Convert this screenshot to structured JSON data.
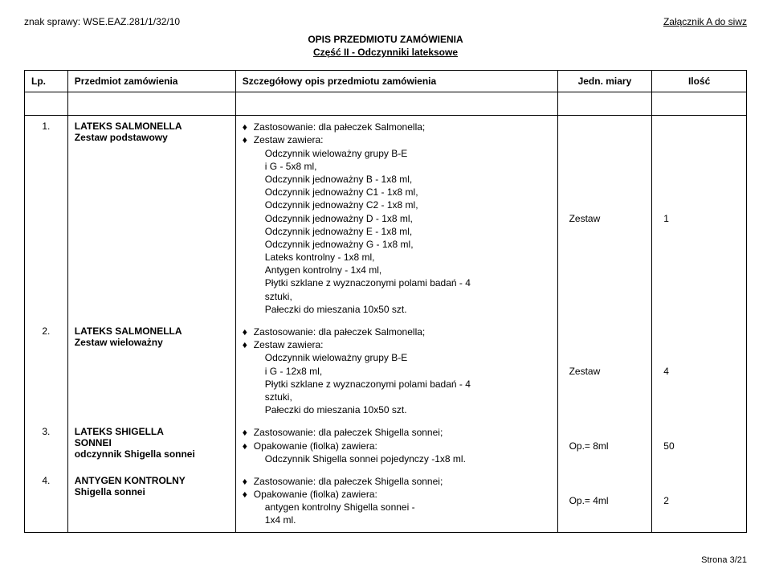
{
  "header": {
    "case_no": "znak sprawy: WSE.EAZ.281/1/32/10",
    "annex": "Załącznik A do siwz"
  },
  "title": {
    "line1": "OPIS PRZEDMIOTU ZAMÓWIENIA",
    "line2": "Część II - Odczynniki lateksowe"
  },
  "columns": {
    "lp": "Lp.",
    "name": "Przedmiot zamówienia",
    "desc": "Szczegółowy opis przedmiotu zamówienia",
    "unit": "Jedn. miary",
    "qty": "Ilość"
  },
  "rows": [
    {
      "lp": "1.",
      "name_html": "<b>LATEKS SALMONELLA<br>Zestaw podstawowy</b>",
      "desc": {
        "items": [
          {
            "text": "Zastosowanie: dla pałeczek Salmonella;"
          },
          {
            "text": "Zestaw zawiera:",
            "sub": [
              "Odczynnik wieloważny grupy B-E",
              "i G - 5x8 ml,",
              "Odczynnik jednoważny B - 1x8 ml,",
              "Odczynnik jednoważny C1 - 1x8 ml,",
              "Odczynnik jednoważny C2 - 1x8 ml,",
              "Odczynnik jednoważny D - 1x8 ml,",
              "Odczynnik jednoważny E - 1x8 ml,",
              "Odczynnik jednoważny G - 1x8 ml,",
              "Lateks kontrolny - 1x8 ml,",
              "Antygen kontrolny - 1x4 ml,",
              "Płytki szklane z wyznaczonymi polami badań - 4",
              "sztuki,",
              "Pałeczki do mieszania 10x50 szt."
            ]
          }
        ]
      },
      "unit": "Zestaw",
      "qty": "1"
    },
    {
      "lp": "2.",
      "name_html": "<b>LATEKS SALMONELLA<br>Zestaw wieloważny</b>",
      "desc": {
        "items": [
          {
            "text": "Zastosowanie: dla pałeczek Salmonella;"
          },
          {
            "text": "Zestaw zawiera:",
            "sub": [
              "Odczynnik wieloważny grupy B-E",
              "i G - 12x8 ml,",
              "Płytki szklane z wyznaczonymi polami badań - 4",
              "sztuki,",
              "Pałeczki do mieszania 10x50 szt."
            ]
          }
        ]
      },
      "unit": "Zestaw",
      "qty": "4"
    },
    {
      "lp": "3.",
      "name_html": "<b>LATEKS SHIGELLA<br>SONNEI<br>odczynnik Shigella sonnei</b>",
      "desc": {
        "items": [
          {
            "text": "Zastosowanie: dla pałeczek Shigella sonnei;"
          },
          {
            "text": "Opakowanie (fiolka) zawiera:",
            "sub": [
              "Odczynnik Shigella sonnei pojedynczy -1x8 ml."
            ]
          }
        ]
      },
      "unit": "Op.= 8ml",
      "qty": "50"
    },
    {
      "lp": "4.",
      "name_html": "<b>ANTYGEN KONTROLNY<br>Shigella sonnei</b>",
      "desc": {
        "items": [
          {
            "text": "Zastosowanie: dla pałeczek Shigella sonnei;"
          },
          {
            "text": "Opakowanie (fiolka) zawiera:",
            "sub": [
              "antygen kontrolny Shigella sonnei -",
              "1x4 ml."
            ]
          }
        ]
      },
      "unit": "Op.= 4ml",
      "qty": "2"
    }
  ],
  "footer": "Strona 3/21"
}
